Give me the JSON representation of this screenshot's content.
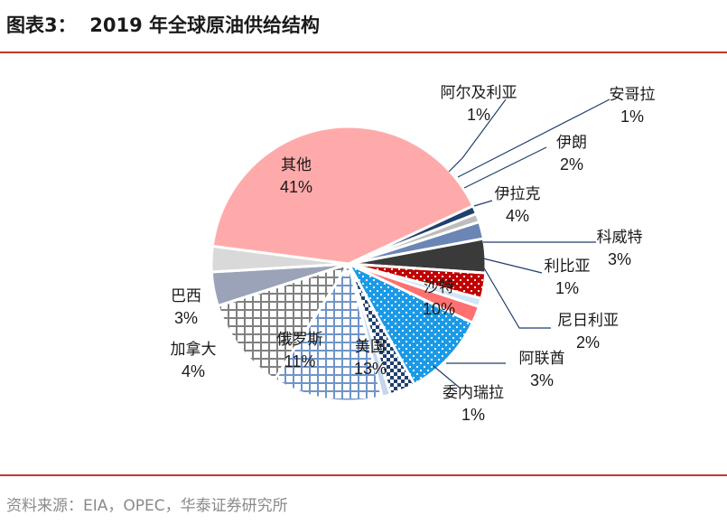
{
  "heading": "图表3：  2019 年全球原油供给结构",
  "source": "资料来源：EIA，OPEC，华泰证券研究所",
  "chart_data": {
    "type": "pie",
    "title": "2019 年全球原油供给结构",
    "unit": "%",
    "slices": [
      {
        "label": "阿尔及利亚",
        "value_label": "1%",
        "value": 1,
        "color": "#1f3f6e",
        "pattern": "solid"
      },
      {
        "label": "安哥拉",
        "value_label": "1%",
        "value": 1,
        "color": "#bdbdbd",
        "pattern": "solid"
      },
      {
        "label": "伊朗",
        "value_label": "2%",
        "value": 2,
        "color": "#6b86b5",
        "pattern": "solid"
      },
      {
        "label": "伊拉克",
        "value_label": "4%",
        "value": 4,
        "color": "#3a3a3a",
        "pattern": "solid"
      },
      {
        "label": "科威特",
        "value_label": "3%",
        "value": 3,
        "color": "#c00000",
        "pattern": "dots"
      },
      {
        "label": "利比亚",
        "value_label": "1%",
        "value": 1,
        "color": "#cfe6f7",
        "pattern": "solid"
      },
      {
        "label": "尼日利亚",
        "value_label": "2%",
        "value": 2,
        "color": "#ff7070",
        "pattern": "solid"
      },
      {
        "label": "沙特",
        "value_label": "10%",
        "value": 10,
        "color": "#1a9ae6",
        "pattern": "dots"
      },
      {
        "label": "阿联酋",
        "value_label": "3%",
        "value": 3,
        "color": "#1f3f6e",
        "pattern": "checker"
      },
      {
        "label": "委内瑞拉",
        "value_label": "1%",
        "value": 1,
        "color": "#c4d7ec",
        "pattern": "solid"
      },
      {
        "label": "美国",
        "value_label": "13%",
        "value": 13,
        "color": "#6f94c8",
        "pattern": "grid"
      },
      {
        "label": "俄罗斯",
        "value_label": "11%",
        "value": 11,
        "color": "#808080",
        "pattern": "grid"
      },
      {
        "label": "加拿大",
        "value_label": "4%",
        "value": 4,
        "color": "#9aa3b8",
        "pattern": "solid"
      },
      {
        "label": "巴西",
        "value_label": "3%",
        "value": 3,
        "color": "#d9d9d9",
        "pattern": "solid"
      },
      {
        "label": "其他",
        "value_label": "41%",
        "value": 41,
        "color": "#ffaaaa",
        "pattern": "solid"
      }
    ]
  }
}
